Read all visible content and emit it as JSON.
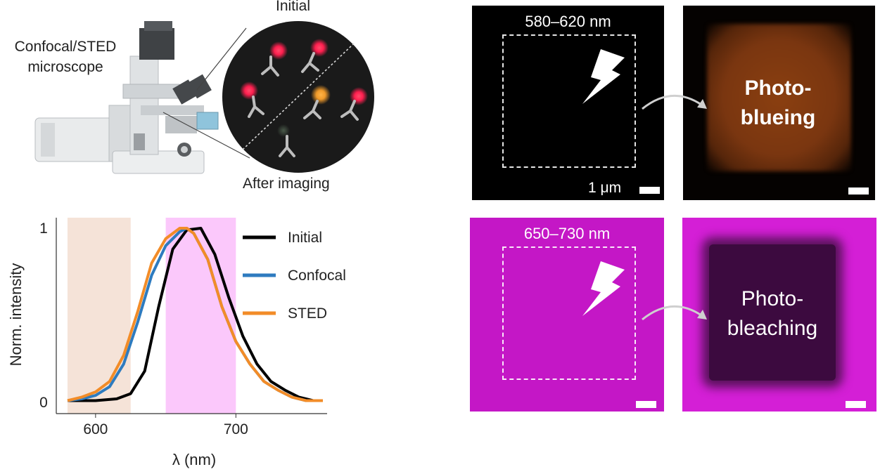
{
  "schematic": {
    "microscope_label_line1": "Confocal/STED",
    "microscope_label_line2": "microscope",
    "initial_label": "Initial",
    "after_label": "After imaging"
  },
  "chart_data": {
    "type": "line",
    "xlabel": "λ (nm)",
    "ylabel": "Norm. intensity",
    "xlim": [
      572,
      765
    ],
    "ylim": [
      0,
      1
    ],
    "x_ticks": [
      "600",
      "700"
    ],
    "y_ticks": [
      "0",
      "1"
    ],
    "shaded_bands": [
      {
        "range": [
          580,
          625
        ],
        "color": "#f5e3d8"
      },
      {
        "range": [
          650,
          700
        ],
        "color": "#fbc8fb"
      }
    ],
    "series": [
      {
        "name": "Initial",
        "color": "#000000",
        "x": [
          580,
          600,
          615,
          625,
          635,
          645,
          655,
          665,
          675,
          685,
          695,
          705,
          715,
          725,
          735,
          745,
          755,
          762
        ],
        "y": [
          0.01,
          0.01,
          0.02,
          0.05,
          0.18,
          0.55,
          0.88,
          0.99,
          1.0,
          0.85,
          0.6,
          0.38,
          0.22,
          0.12,
          0.07,
          0.03,
          0.01,
          0.01
        ]
      },
      {
        "name": "Confocal",
        "color": "#2e7bbf",
        "x": [
          580,
          590,
          600,
          610,
          620,
          630,
          640,
          650,
          660,
          665,
          670,
          680,
          690,
          700,
          710,
          720,
          730,
          740,
          750,
          762
        ],
        "y": [
          0.01,
          0.02,
          0.04,
          0.09,
          0.22,
          0.46,
          0.73,
          0.9,
          0.98,
          1.0,
          0.97,
          0.82,
          0.55,
          0.35,
          0.22,
          0.12,
          0.07,
          0.03,
          0.01,
          0.01
        ]
      },
      {
        "name": "STED",
        "color": "#f28c28",
        "x": [
          580,
          590,
          600,
          610,
          620,
          630,
          640,
          650,
          660,
          665,
          670,
          680,
          690,
          700,
          710,
          720,
          730,
          740,
          750,
          762
        ],
        "y": [
          0.01,
          0.03,
          0.06,
          0.12,
          0.27,
          0.52,
          0.8,
          0.94,
          1.0,
          1.0,
          0.97,
          0.82,
          0.55,
          0.35,
          0.22,
          0.12,
          0.07,
          0.03,
          0.01,
          0.01
        ]
      }
    ]
  },
  "images": {
    "top_wavelength": "580–620 nm",
    "bottom_wavelength": "650–730 nm",
    "scale_label": "1 μm",
    "photoblueing_line1": "Photo-",
    "photoblueing_line2": "blueing",
    "photobleaching_line1": "Photo-",
    "photobleaching_line2": "bleaching"
  }
}
